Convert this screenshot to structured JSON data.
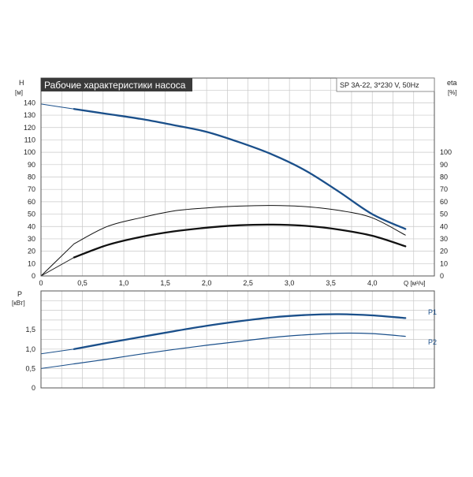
{
  "colors": {
    "accent": "#1a4f8a",
    "title_bg": "#3a3a3a",
    "grid": "#c8c8c8"
  },
  "chart_data": [
    {
      "type": "line",
      "title": "Рабочие характеристики насоса",
      "subtitle": "SP 3A-22, 3*230 V, 50Hz",
      "xlabel": "Q [м³/ч]",
      "ylabel": "H",
      "ylabel_unit": "[м]",
      "ylabel_right": "eta",
      "ylabel_right_unit": "[%]",
      "xlim": [
        0,
        4.75
      ],
      "ylim": [
        0,
        160
      ],
      "ylim_right": [
        0,
        160
      ],
      "x_ticks": [
        "0",
        "0,5",
        "1,0",
        "1,5",
        "2,0",
        "2,5",
        "3,0",
        "3,5",
        "4,0"
      ],
      "y_ticks": [
        "0",
        "10",
        "20",
        "30",
        "40",
        "50",
        "60",
        "70",
        "80",
        "90",
        "100",
        "110",
        "120",
        "130",
        "140"
      ],
      "y_right_ticks": [
        "0",
        "10",
        "20",
        "30",
        "40",
        "50",
        "60",
        "70",
        "80",
        "90",
        "100"
      ],
      "grid": true,
      "series": [
        {
          "role": "head",
          "axis": "left",
          "color": "#1a4f8a",
          "x": [
            0,
            0.4,
            0.8,
            1.2,
            1.6,
            2.0,
            2.4,
            2.8,
            3.2,
            3.6,
            4.0,
            4.4
          ],
          "y": [
            139,
            135,
            131,
            127,
            122,
            116.5,
            108,
            98,
            85,
            68,
            50,
            38
          ]
        },
        {
          "role": "eta-hydraulic",
          "axis": "right",
          "color": "#111111",
          "x": [
            0,
            0.4,
            0.8,
            1.2,
            1.6,
            2.0,
            2.4,
            2.8,
            3.2,
            3.6,
            4.0,
            4.4
          ],
          "y": [
            0,
            26,
            40,
            47,
            52.5,
            55,
            56.5,
            57,
            56,
            53,
            47,
            33
          ]
        },
        {
          "role": "eta-total",
          "axis": "right",
          "color": "#111111",
          "x": [
            0,
            0.4,
            0.8,
            1.2,
            1.6,
            2.0,
            2.4,
            2.8,
            3.2,
            3.6,
            4.0,
            4.4
          ],
          "y": [
            0,
            15,
            25,
            31.5,
            36,
            39,
            41,
            41.5,
            40.5,
            37.5,
            32.5,
            24
          ]
        }
      ]
    },
    {
      "type": "line",
      "ylabel": "P",
      "ylabel_unit": "[кВт]",
      "xlim": [
        0,
        4.75
      ],
      "ylim": [
        0,
        2.5
      ],
      "y_ticks": [
        "0",
        "0,5",
        "1,0",
        "1,5"
      ],
      "grid": true,
      "series": [
        {
          "name": "P1",
          "color": "#1a4f8a",
          "x": [
            0,
            0.4,
            0.8,
            1.2,
            1.6,
            2.0,
            2.4,
            2.8,
            3.2,
            3.6,
            4.0,
            4.4
          ],
          "y": [
            0.88,
            1.0,
            1.16,
            1.31,
            1.46,
            1.6,
            1.72,
            1.82,
            1.88,
            1.9,
            1.87,
            1.8
          ]
        },
        {
          "name": "P2",
          "color": "#1a4f8a",
          "x": [
            0,
            0.4,
            0.8,
            1.2,
            1.6,
            2.0,
            2.4,
            2.8,
            3.2,
            3.6,
            4.0,
            4.4
          ],
          "y": [
            0.5,
            0.62,
            0.74,
            0.87,
            0.99,
            1.1,
            1.2,
            1.3,
            1.37,
            1.41,
            1.4,
            1.33
          ]
        }
      ]
    }
  ]
}
